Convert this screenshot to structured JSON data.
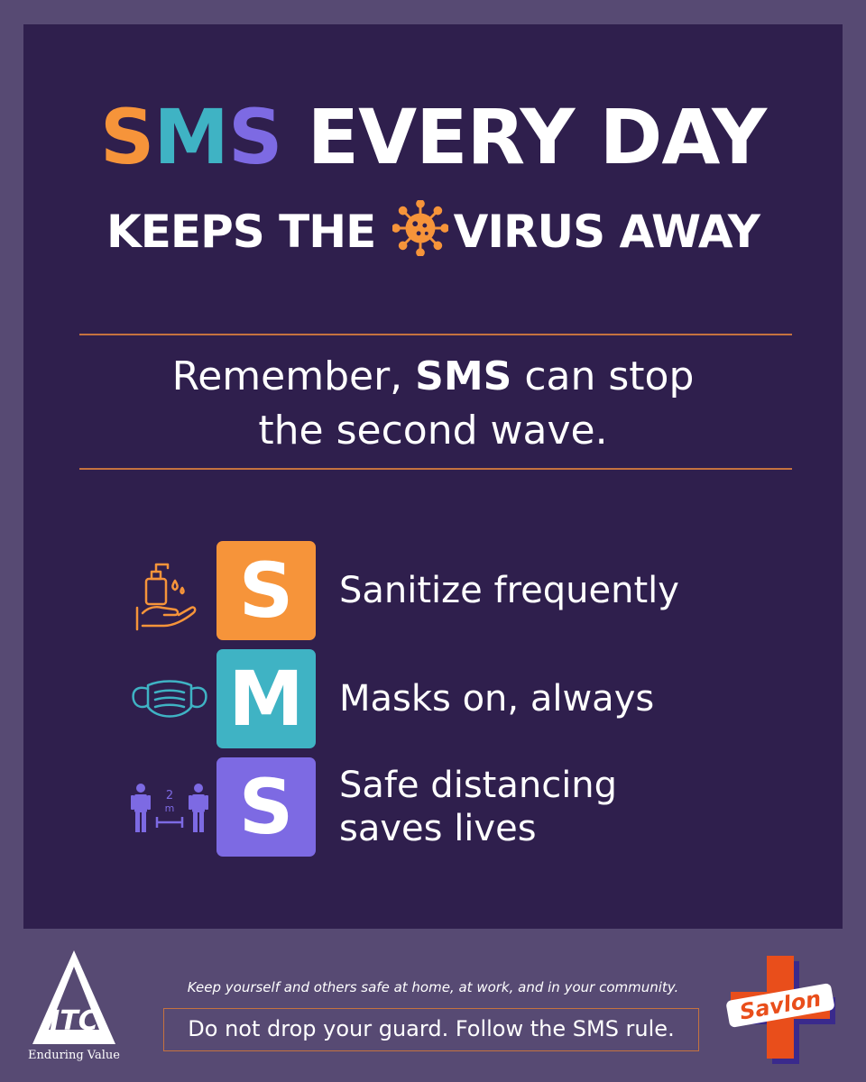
{
  "headline": {
    "part1_s": "S",
    "part1_m": "M",
    "part1_s2": "S",
    "rest": " EVERY DAY"
  },
  "subhead": {
    "before": "KEEPS THE",
    "after": "VIRUS AWAY",
    "icon": "virus-icon"
  },
  "remember": {
    "line1_before": "Remember, ",
    "line1_bold": "SMS",
    "line1_after": " can stop",
    "line2": "the second wave."
  },
  "rules": [
    {
      "letter": "S",
      "text": "Sanitize frequently",
      "icon": "hand-sanitizer-icon",
      "color": "#f6943a"
    },
    {
      "letter": "M",
      "text": "Masks on, always",
      "icon": "face-mask-icon",
      "color": "#3fb3c4"
    },
    {
      "letter": "S",
      "text": "Safe distancing\nsaves lives",
      "icon": "social-distancing-icon",
      "color": "#7d6ae3"
    }
  ],
  "footer": {
    "tagline": "Keep yourself and others safe at home, at work, and in your community.",
    "cta": "Do not drop your guard. Follow the SMS rule.",
    "itc_logo_text": "ITC",
    "itc_slogan": "Enduring Value",
    "savlon_logo_text": "Savlon"
  },
  "colors": {
    "background": "#574a73",
    "panel": "#2f1f4d",
    "orange": "#f6943a",
    "teal": "#3fb3c4",
    "purple": "#7d6ae3",
    "rule": "#c5723f",
    "savlon_red": "#e94e1b"
  }
}
